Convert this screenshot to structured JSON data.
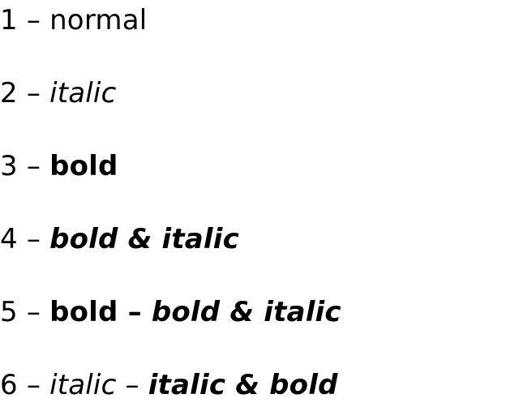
{
  "lines": [
    {
      "number": "1",
      "dash": " – ",
      "parts": [
        {
          "text": "normal",
          "style": "normal"
        }
      ]
    },
    {
      "number": "2",
      "dash": " – ",
      "parts": [
        {
          "text": "italic",
          "style": "italic"
        }
      ]
    },
    {
      "number": "3",
      "dash": " – ",
      "parts": [
        {
          "text": "bold",
          "style": "bold"
        }
      ]
    },
    {
      "number": "4",
      "dash": " – ",
      "parts": [
        {
          "text": "bold & italic",
          "style": "bold-italic"
        }
      ]
    },
    {
      "number": "5",
      "dash": " – ",
      "parts": [
        {
          "text": "bold – ",
          "style": "bold"
        },
        {
          "text": "bold & italic",
          "style": "bold-italic"
        }
      ]
    },
    {
      "number": "6",
      "dash": " – ",
      "parts": [
        {
          "text": "italic – ",
          "style": "italic"
        },
        {
          "text": "italic & bold",
          "style": "bold-italic"
        }
      ]
    }
  ]
}
